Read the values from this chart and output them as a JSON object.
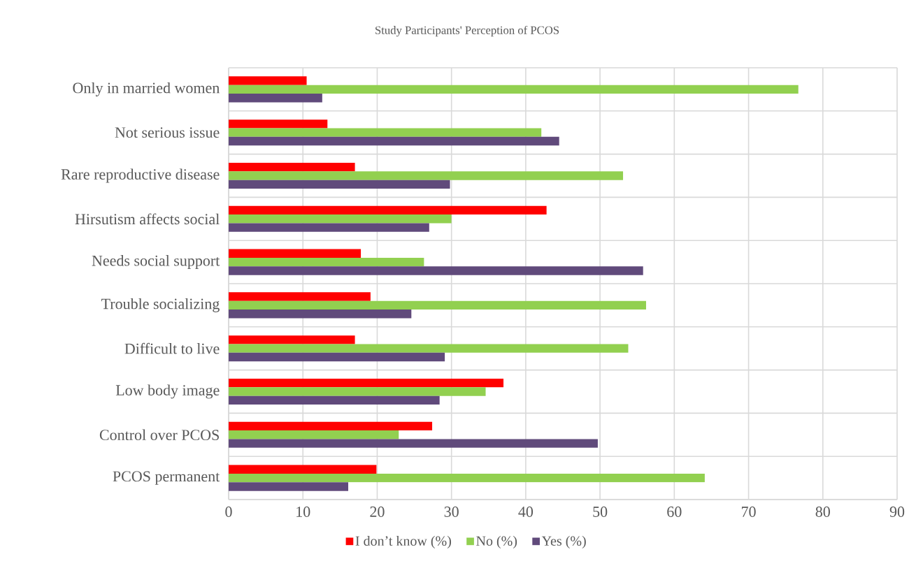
{
  "chart_data": {
    "type": "bar",
    "orientation": "horizontal",
    "title": "Study Participants' Perception of PCOS",
    "categories": [
      "Only in married women",
      "Not serious issue",
      "Rare reproductive disease",
      "Hirsutism affects social",
      "Needs social support",
      "Trouble socializing",
      "Difficult to live",
      "Low body image",
      "Control over PCOS",
      "PCOS permanent"
    ],
    "series": [
      {
        "name": "I don’t know (%)",
        "color": "#ff0000",
        "values": [
          10.5,
          13.3,
          17.0,
          42.8,
          17.8,
          19.1,
          17.0,
          37.0,
          27.4,
          19.9
        ]
      },
      {
        "name": "No (%)",
        "color": "#92d050",
        "values": [
          76.7,
          42.1,
          53.1,
          30.0,
          26.3,
          56.2,
          53.8,
          34.6,
          22.9,
          64.1
        ]
      },
      {
        "name": "Yes (%)",
        "color": "#604a7b",
        "values": [
          12.6,
          44.5,
          29.8,
          27.0,
          55.8,
          24.6,
          29.1,
          28.4,
          49.7,
          16.1
        ]
      }
    ],
    "xlim": [
      0,
      90
    ],
    "xticks": [
      0,
      10,
      20,
      30,
      40,
      50,
      60,
      70,
      80,
      90
    ],
    "grid": true,
    "legend": "bottom"
  }
}
